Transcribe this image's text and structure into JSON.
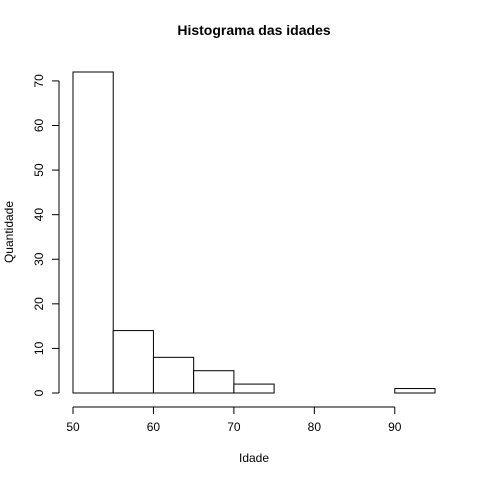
{
  "chart_data": {
    "type": "bar",
    "title": "Histograma das idades",
    "xlabel": "Idade",
    "ylabel": "Quantidade",
    "bins": [
      {
        "start": 50,
        "end": 55,
        "count": 72
      },
      {
        "start": 55,
        "end": 60,
        "count": 14
      },
      {
        "start": 60,
        "end": 65,
        "count": 8
      },
      {
        "start": 65,
        "end": 70,
        "count": 5
      },
      {
        "start": 70,
        "end": 75,
        "count": 2
      },
      {
        "start": 75,
        "end": 80,
        "count": 0
      },
      {
        "start": 80,
        "end": 85,
        "count": 0
      },
      {
        "start": 85,
        "end": 90,
        "count": 0
      },
      {
        "start": 90,
        "end": 95,
        "count": 1
      }
    ],
    "xticks": [
      50,
      60,
      70,
      80,
      90
    ],
    "yticks": [
      0,
      10,
      20,
      30,
      40,
      50,
      60,
      70
    ],
    "xlim": [
      50,
      95
    ],
    "ylim": [
      0,
      72
    ],
    "grid": false,
    "legend": "none",
    "bar_fill": "#ffffff",
    "bar_stroke": "#000000"
  }
}
